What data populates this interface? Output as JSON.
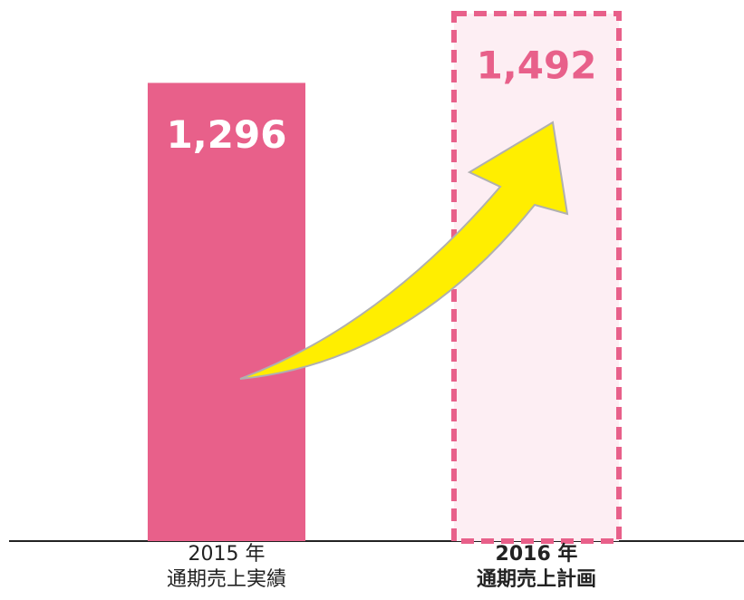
{
  "chart_data": {
    "type": "bar",
    "categories": [
      [
        "2015 年",
        "通期売上実績"
      ],
      [
        "2016 年",
        "通期売上計画"
      ]
    ],
    "values": [
      1296,
      1492
    ],
    "value_labels": [
      "1,296",
      "1,492"
    ],
    "color": "#e8608a",
    "dashed": [
      false,
      true
    ],
    "bold_label": [
      false,
      true
    ]
  }
}
